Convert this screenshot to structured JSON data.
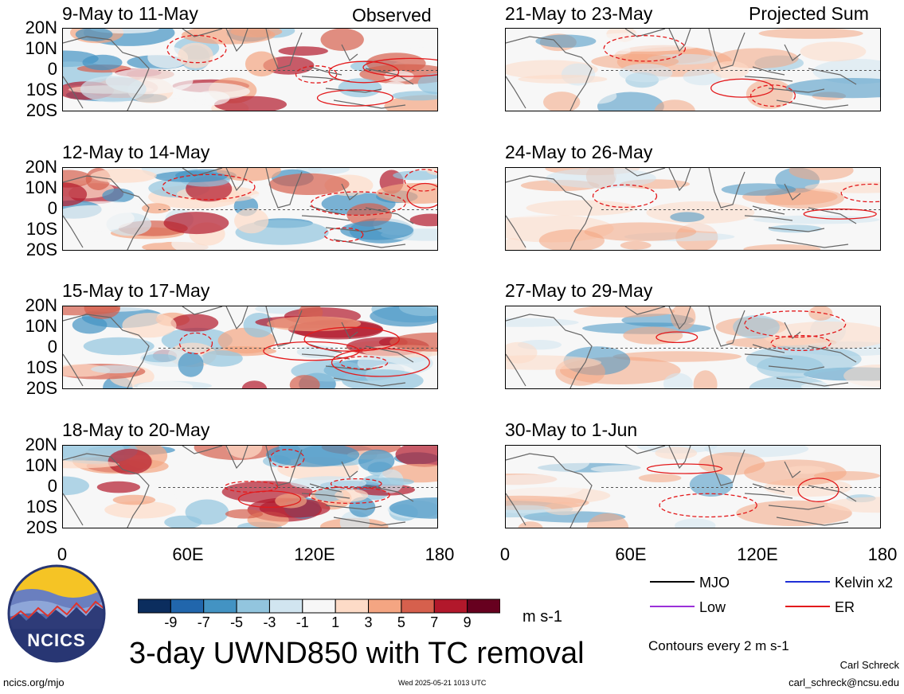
{
  "header": {
    "left_label": "Observed",
    "right_label": "Projected Sum"
  },
  "panels_left": [
    {
      "title": "9-May to 11-May"
    },
    {
      "title": "12-May to 14-May"
    },
    {
      "title": "15-May to 17-May"
    },
    {
      "title": "18-May to 20-May"
    }
  ],
  "panels_right": [
    {
      "title": "21-May to 23-May"
    },
    {
      "title": "24-May to 26-May"
    },
    {
      "title": "27-May to 29-May"
    },
    {
      "title": "30-May to 1-Jun"
    }
  ],
  "axes": {
    "y_ticks": [
      "20N",
      "10N",
      "0",
      "10S",
      "20S"
    ],
    "x_ticks": [
      "0",
      "60E",
      "120E",
      "180"
    ]
  },
  "colorbar": {
    "labels": [
      "-9",
      "-7",
      "-5",
      "-3",
      "-1",
      "1",
      "3",
      "5",
      "7",
      "9"
    ],
    "colors": [
      "#0b2d5e",
      "#2166ac",
      "#4393c3",
      "#92c5de",
      "#d1e5f0",
      "#f7f7f7",
      "#fddbc7",
      "#f4a582",
      "#d6604d",
      "#b2182b",
      "#67001f"
    ],
    "units": "m s-1"
  },
  "main_title": "3-day UWND850 with TC removal",
  "legend": {
    "items": [
      {
        "label": "MJO",
        "color": "#000000"
      },
      {
        "label": "Kelvin x2",
        "color": "#1f2fd6"
      },
      {
        "label": "Low",
        "color": "#9b30d9"
      },
      {
        "label": "ER",
        "color": "#e31a1c"
      }
    ],
    "contour_note": "Contours every 2 m s-1"
  },
  "logo": {
    "text": "NCICS"
  },
  "footer": {
    "url": "ncics.org/mjo",
    "timestamp": "Wed 2025-05-21 1013 UTC",
    "author": "Carl Schreck",
    "email": "carl_schreck@ncsu.edu"
  }
}
